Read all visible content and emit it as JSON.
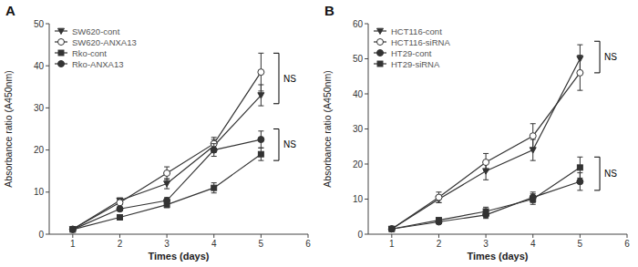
{
  "chart_data": [
    {
      "type": "line",
      "title": "A",
      "x_label": "Times (days)",
      "y_label": "Absorbance ratio (A450nm)",
      "x": [
        1,
        2,
        3,
        4,
        5
      ],
      "xlim": [
        0.5,
        6.0
      ],
      "ylim": [
        0,
        50
      ],
      "xticks": [
        1,
        2,
        3,
        4,
        5,
        6
      ],
      "yticks": [
        0,
        10,
        20,
        30,
        40,
        50
      ],
      "grid": false,
      "legend": "upper left",
      "series": [
        {
          "name": "SW620-cont",
          "color": "#333333",
          "marker": "triangle-down",
          "values": [
            1.2,
            8.0,
            12.0,
            21.0,
            33.0
          ],
          "errors": [
            0.2,
            0.6,
            1.2,
            1.5,
            2.5
          ]
        },
        {
          "name": "SW620-ANXA13",
          "color": "#333333",
          "marker": "circle-open",
          "values": [
            1.2,
            7.5,
            14.5,
            21.5,
            38.5
          ],
          "errors": [
            0.2,
            0.5,
            1.5,
            1.5,
            4.5
          ]
        },
        {
          "name": "Rko-cont",
          "color": "#333333",
          "marker": "square",
          "values": [
            1.1,
            4.0,
            7.0,
            11.0,
            19.0
          ],
          "errors": [
            0.15,
            0.4,
            0.7,
            1.2,
            1.5
          ]
        },
        {
          "name": "Rko-ANXA13",
          "color": "#333333",
          "marker": "circle",
          "values": [
            1.1,
            6.0,
            8.0,
            20.0,
            22.5
          ],
          "errors": [
            0.15,
            0.5,
            0.7,
            1.5,
            2.0
          ]
        }
      ],
      "annotations": [
        {
          "text": "NS",
          "x": 5.38,
          "y1": 31.0,
          "y2": 43.0
        },
        {
          "text": "NS",
          "x": 5.38,
          "y1": 17.5,
          "y2": 25.0
        }
      ]
    },
    {
      "type": "line",
      "title": "B",
      "x_label": "Times (days)",
      "y_label": "Absorbance ratio (A450nm)",
      "x": [
        1,
        2,
        3,
        4,
        5
      ],
      "xlim": [
        0.5,
        6.0
      ],
      "ylim": [
        0,
        60
      ],
      "xticks": [
        1,
        2,
        3,
        4,
        5,
        6
      ],
      "yticks": [
        0,
        10,
        20,
        30,
        40,
        50,
        60
      ],
      "grid": false,
      "legend": "upper left",
      "series": [
        {
          "name": "HCT116-cont",
          "color": "#333333",
          "marker": "triangle-down",
          "values": [
            1.5,
            10.0,
            18.0,
            24.0,
            50.0
          ],
          "errors": [
            0.3,
            1.0,
            2.5,
            3.0,
            4.0
          ]
        },
        {
          "name": "HCT116-siRNA",
          "color": "#333333",
          "marker": "circle-open",
          "values": [
            1.5,
            10.5,
            20.5,
            28.0,
            46.0
          ],
          "errors": [
            0.3,
            1.5,
            2.5,
            3.5,
            5.0
          ]
        },
        {
          "name": "HT29-cont",
          "color": "#333333",
          "marker": "circle",
          "values": [
            1.5,
            3.5,
            5.5,
            10.5,
            15.0
          ],
          "errors": [
            0.2,
            0.5,
            1.0,
            1.5,
            2.5
          ]
        },
        {
          "name": "HT29-siRNA",
          "color": "#333333",
          "marker": "square",
          "values": [
            1.5,
            4.0,
            6.5,
            10.0,
            19.0
          ],
          "errors": [
            0.2,
            0.6,
            1.2,
            1.5,
            3.0
          ]
        }
      ],
      "annotations": [
        {
          "text": "NS",
          "x": 5.42,
          "y1": 46.0,
          "y2": 55.0
        },
        {
          "text": "NS",
          "x": 5.42,
          "y1": 12.5,
          "y2": 22.0
        }
      ]
    }
  ]
}
